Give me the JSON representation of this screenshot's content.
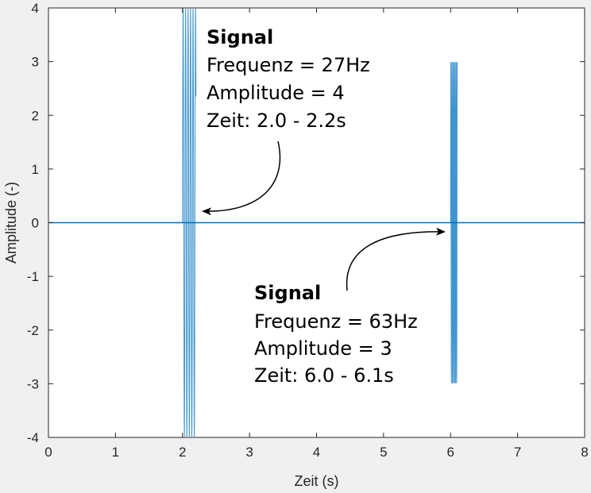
{
  "chart_data": {
    "type": "line",
    "title": "",
    "xlabel": "Zeit (s)",
    "ylabel": "Amplitude (-)",
    "xlim": [
      0,
      8
    ],
    "ylim": [
      -4,
      4
    ],
    "xticks": [
      "0",
      "1",
      "2",
      "3",
      "4",
      "5",
      "6",
      "7",
      "8"
    ],
    "yticks": [
      "4",
      "3",
      "2",
      "1",
      "0",
      "-1",
      "-2",
      "-3",
      "-4"
    ],
    "grid": false,
    "line_color": "#0072bd",
    "series": [
      {
        "baseline": 0,
        "bursts": [
          {
            "t_start": 2.0,
            "t_end": 2.2,
            "frequency_hz": 27,
            "amplitude": 4
          },
          {
            "t_start": 6.0,
            "t_end": 6.1,
            "frequency_hz": 63,
            "amplitude": 3
          }
        ]
      }
    ],
    "annotations": [
      {
        "title": "Signal",
        "lines": [
          "Frequenz = 27Hz",
          "Amplitude = 4",
          "Zeit: 2.0 - 2.2s"
        ],
        "arrow_to": [
          2.2,
          0.15
        ]
      },
      {
        "title": "Signal",
        "lines": [
          "Frequenz = 63Hz",
          "Amplitude = 3",
          "Zeit: 6.0 - 6.1s"
        ],
        "arrow_to": [
          6.0,
          -0.15
        ]
      }
    ]
  }
}
